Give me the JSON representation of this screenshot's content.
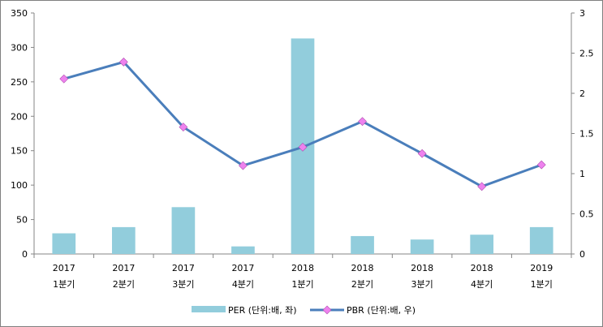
{
  "chart_data": {
    "type": "bar",
    "categories": [
      [
        "2017",
        "1분기"
      ],
      [
        "2017",
        "2분기"
      ],
      [
        "2017",
        "3분기"
      ],
      [
        "2017",
        "4분기"
      ],
      [
        "2018",
        "1분기"
      ],
      [
        "2018",
        "2분기"
      ],
      [
        "2018",
        "3분기"
      ],
      [
        "2018",
        "4분기"
      ],
      [
        "2019",
        "1분기"
      ]
    ],
    "series": [
      {
        "name": "PER (단위:배, 좌)",
        "type": "bar",
        "axis": "left",
        "color": "#92CDDC",
        "values": [
          30,
          39,
          68,
          11,
          313,
          26,
          21,
          28,
          39
        ]
      },
      {
        "name": "PBR (단위:배, 우)",
        "type": "line",
        "axis": "right",
        "color": "#4A7EBB",
        "marker": "diamond",
        "marker_color": "#EE82EE",
        "values": [
          2.18,
          2.39,
          1.58,
          1.1,
          1.33,
          1.65,
          1.25,
          0.84,
          1.11
        ]
      }
    ],
    "y_left": {
      "min": 0,
      "max": 350,
      "ticks": [
        "0",
        "50",
        "100",
        "150",
        "200",
        "250",
        "300",
        "350"
      ]
    },
    "y_right": {
      "min": 0,
      "max": 3,
      "ticks": [
        "0",
        "0.5",
        "1",
        "1.5",
        "2",
        "2.5",
        "3"
      ]
    },
    "grid": false,
    "legend_position": "bottom"
  }
}
